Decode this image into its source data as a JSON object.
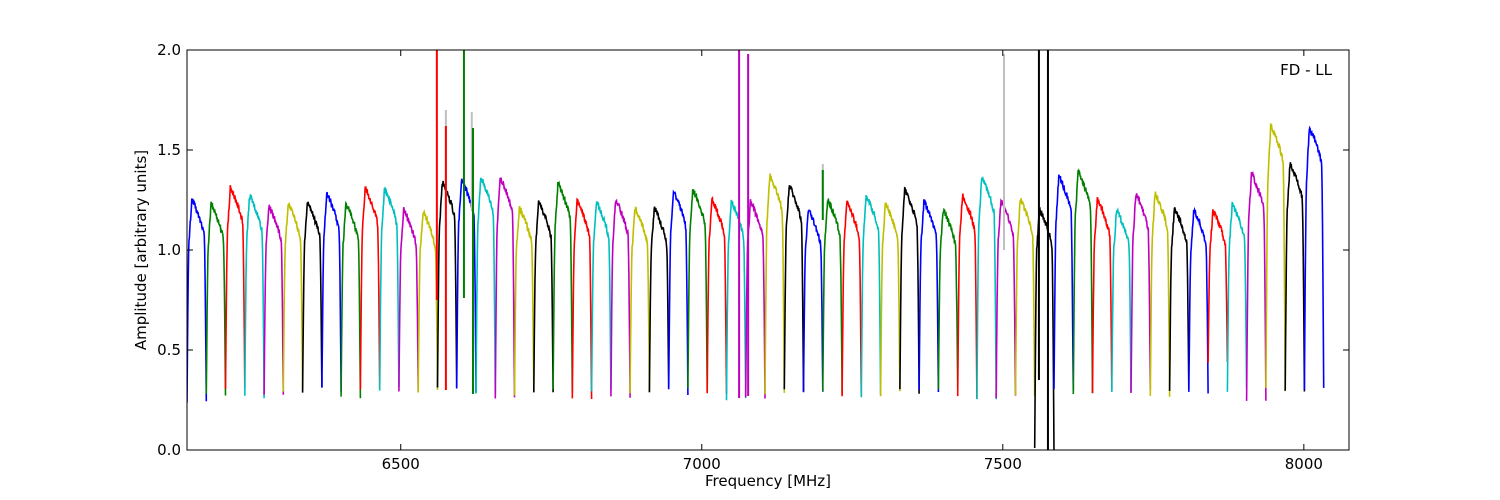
{
  "chart_data": {
    "type": "line",
    "title": "",
    "annotation": "FD - LL",
    "xlabel": "Frequency [MHz]",
    "ylabel": "Amplitude [arbitrary units]",
    "xlim": [
      6145,
      8075
    ],
    "ylim": [
      0.0,
      2.0
    ],
    "x_ticks": [
      6500,
      7000,
      7500,
      8000
    ],
    "x_tick_labels": [
      "6500",
      "7000",
      "7500",
      "8000"
    ],
    "y_ticks": [
      0.0,
      0.5,
      1.0,
      1.5,
      2.0
    ],
    "y_tick_labels": [
      "0.0",
      "0.5",
      "1.0",
      "1.5",
      "2.0"
    ],
    "grid": false,
    "legend": false,
    "color_cycle": [
      "#0000ff",
      "#008000",
      "#ff0000",
      "#00bfbf",
      "#bf00bf",
      "#bfbf00",
      "#000000"
    ],
    "flag_color": "#bfbfbf",
    "channel_width_mhz": 32,
    "series": [
      {
        "start": 6145,
        "color": "#0000ff",
        "peak": 1.25,
        "min": 0.25
      },
      {
        "start": 6177,
        "color": "#008000",
        "peak": 1.23,
        "min": 0.27
      },
      {
        "start": 6209,
        "color": "#ff0000",
        "peak": 1.31,
        "min": 0.3
      },
      {
        "start": 6241,
        "color": "#00bfbf",
        "peak": 1.27,
        "min": 0.27
      },
      {
        "start": 6273,
        "color": "#bf00bf",
        "peak": 1.22,
        "min": 0.28
      },
      {
        "start": 6305,
        "color": "#bfbf00",
        "peak": 1.23,
        "min": 0.3
      },
      {
        "start": 6337,
        "color": "#000000",
        "peak": 1.24,
        "min": 0.3
      },
      {
        "start": 6369,
        "color": "#0000ff",
        "peak": 1.28,
        "min": 0.3
      },
      {
        "start": 6401,
        "color": "#008000",
        "peak": 1.23,
        "min": 0.26
      },
      {
        "start": 6433,
        "color": "#ff0000",
        "peak": 1.31,
        "min": 0.3
      },
      {
        "start": 6465,
        "color": "#00bfbf",
        "peak": 1.3,
        "min": 0.3
      },
      {
        "start": 6497,
        "color": "#bf00bf",
        "peak": 1.2,
        "min": 0.3
      },
      {
        "start": 6529,
        "color": "#bfbf00",
        "peak": 1.19,
        "min": 0.3
      },
      {
        "start": 6561,
        "color": "#000000",
        "peak": 1.34,
        "min": 0.3
      },
      {
        "start": 6593,
        "color": "#0000ff",
        "peak": 1.35,
        "min": 0.3
      },
      {
        "start": 6625,
        "color": "#00bfbf",
        "peak": 1.36,
        "min": 0.28
      },
      {
        "start": 6657,
        "color": "#bf00bf",
        "peak": 1.36,
        "min": 0.26
      },
      {
        "start": 6689,
        "color": "#bfbf00",
        "peak": 1.21,
        "min": 0.28
      },
      {
        "start": 6721,
        "color": "#000000",
        "peak": 1.24,
        "min": 0.3
      },
      {
        "start": 6753,
        "color": "#008000",
        "peak": 1.33,
        "min": 0.29
      },
      {
        "start": 6785,
        "color": "#ff0000",
        "peak": 1.24,
        "min": 0.25
      },
      {
        "start": 6817,
        "color": "#00bfbf",
        "peak": 1.24,
        "min": 0.29
      },
      {
        "start": 6849,
        "color": "#bf00bf",
        "peak": 1.25,
        "min": 0.27
      },
      {
        "start": 6881,
        "color": "#bfbf00",
        "peak": 1.21,
        "min": 0.29
      },
      {
        "start": 6913,
        "color": "#000000",
        "peak": 1.21,
        "min": 0.3
      },
      {
        "start": 6945,
        "color": "#0000ff",
        "peak": 1.29,
        "min": 0.29
      },
      {
        "start": 6977,
        "color": "#008000",
        "peak": 1.3,
        "min": 0.3
      },
      {
        "start": 7009,
        "color": "#ff0000",
        "peak": 1.25,
        "min": 0.28
      },
      {
        "start": 7041,
        "color": "#00bfbf",
        "peak": 1.24,
        "min": 0.25
      },
      {
        "start": 7073,
        "color": "#bf00bf",
        "peak": 1.24,
        "min": 0.27
      },
      {
        "start": 7105,
        "color": "#bfbf00",
        "peak": 1.37,
        "min": 0.29
      },
      {
        "start": 7137,
        "color": "#000000",
        "peak": 1.32,
        "min": 0.29
      },
      {
        "start": 7169,
        "color": "#0000ff",
        "peak": 1.2,
        "min": 0.28
      },
      {
        "start": 7201,
        "color": "#008000",
        "peak": 1.25,
        "min": 0.29
      },
      {
        "start": 7233,
        "color": "#ff0000",
        "peak": 1.24,
        "min": 0.27
      },
      {
        "start": 7265,
        "color": "#00bfbf",
        "peak": 1.27,
        "min": 0.27
      },
      {
        "start": 7297,
        "color": "#bfbf00",
        "peak": 1.23,
        "min": 0.28
      },
      {
        "start": 7329,
        "color": "#000000",
        "peak": 1.3,
        "min": 0.29
      },
      {
        "start": 7361,
        "color": "#0000ff",
        "peak": 1.24,
        "min": 0.29
      },
      {
        "start": 7393,
        "color": "#008000",
        "peak": 1.2,
        "min": 0.3
      },
      {
        "start": 7425,
        "color": "#ff0000",
        "peak": 1.27,
        "min": 0.27
      },
      {
        "start": 7457,
        "color": "#00bfbf",
        "peak": 1.36,
        "min": 0.26
      },
      {
        "start": 7489,
        "color": "#bf00bf",
        "peak": 1.25,
        "min": 0.27
      },
      {
        "start": 7521,
        "color": "#bfbf00",
        "peak": 1.25,
        "min": 0.26
      },
      {
        "start": 7553,
        "color": "#000000",
        "peak": 1.2,
        "min": 0.0
      },
      {
        "start": 7585,
        "color": "#0000ff",
        "peak": 1.37,
        "min": 0.3
      },
      {
        "start": 7617,
        "color": "#008000",
        "peak": 1.39,
        "min": 0.28
      },
      {
        "start": 7649,
        "color": "#ff0000",
        "peak": 1.25,
        "min": 0.29
      },
      {
        "start": 7681,
        "color": "#00bfbf",
        "peak": 1.2,
        "min": 0.3
      },
      {
        "start": 7713,
        "color": "#bf00bf",
        "peak": 1.28,
        "min": 0.3
      },
      {
        "start": 7745,
        "color": "#bfbf00",
        "peak": 1.28,
        "min": 0.26
      },
      {
        "start": 7777,
        "color": "#000000",
        "peak": 1.21,
        "min": 0.29
      },
      {
        "start": 7809,
        "color": "#0000ff",
        "peak": 1.2,
        "min": 0.29
      },
      {
        "start": 7841,
        "color": "#ff0000",
        "peak": 1.2,
        "min": 0.44
      },
      {
        "start": 7873,
        "color": "#00bfbf",
        "peak": 1.23,
        "min": 0.3
      },
      {
        "start": 7905,
        "color": "#bf00bf",
        "peak": 1.38,
        "min": 0.26
      },
      {
        "start": 7937,
        "color": "#bfbf00",
        "peak": 1.62,
        "min": 0.3
      },
      {
        "start": 7969,
        "color": "#000000",
        "peak": 1.43,
        "min": 0.29
      },
      {
        "start": 8001,
        "color": "#0000ff",
        "peak": 1.61,
        "min": 0.3
      }
    ],
    "rfi_spikes": [
      {
        "x": 6560,
        "color": "#ff0000",
        "top": 2.0,
        "bottom": 0.75
      },
      {
        "x": 6575,
        "color": "#bfbfbf",
        "top": 1.7,
        "bottom": 1.2
      },
      {
        "x": 6575,
        "color": "#ff0000",
        "top": 1.62,
        "bottom": 0.3
      },
      {
        "x": 6605,
        "color": "#008000",
        "top": 2.0,
        "bottom": 0.76
      },
      {
        "x": 6618,
        "color": "#bfbfbf",
        "top": 1.69,
        "bottom": 1.2
      },
      {
        "x": 6620,
        "color": "#008000",
        "top": 1.61,
        "bottom": 0.28
      },
      {
        "x": 7062,
        "color": "#bf00bf",
        "top": 2.0,
        "bottom": 0.26
      },
      {
        "x": 7077,
        "color": "#bf00bf",
        "top": 1.98,
        "bottom": 0.27
      },
      {
        "x": 7201,
        "color": "#bfbfbf",
        "top": 1.43,
        "bottom": 1.2
      },
      {
        "x": 7201,
        "color": "#008000",
        "top": 1.4,
        "bottom": 1.15
      },
      {
        "x": 7502,
        "color": "#bfbfbf",
        "top": 1.98,
        "bottom": 1.0
      },
      {
        "x": 7560,
        "color": "#000000",
        "top": 2.0,
        "bottom": 0.35
      },
      {
        "x": 7575,
        "color": "#000000",
        "top": 2.0,
        "bottom": 0.0
      }
    ]
  }
}
